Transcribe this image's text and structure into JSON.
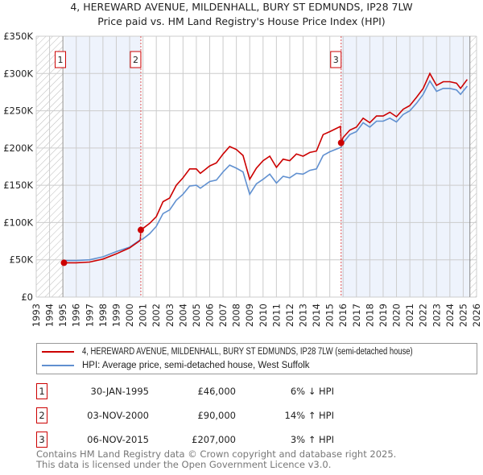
{
  "chart_data": {
    "type": "line",
    "title": "4, HEREWARD AVENUE, MILDENHALL, BURY ST EDMUNDS, IP28 7LW",
    "subtitle": "Price paid vs. HM Land Registry's House Price Index (HPI)",
    "xlim": [
      1993,
      2026
    ],
    "ylim": [
      0,
      350000
    ],
    "x_ticks": [
      "1993",
      "1994",
      "1995",
      "1996",
      "1997",
      "1998",
      "1999",
      "2000",
      "2001",
      "2002",
      "2003",
      "2004",
      "2005",
      "2006",
      "2007",
      "2008",
      "2009",
      "2010",
      "2011",
      "2012",
      "2013",
      "2014",
      "2015",
      "2016",
      "2017",
      "2018",
      "2019",
      "2020",
      "2021",
      "2022",
      "2023",
      "2024",
      "2025",
      "2026"
    ],
    "y_ticks": [
      {
        "v": 0,
        "label": "£0"
      },
      {
        "v": 50000,
        "label": "£50K"
      },
      {
        "v": 100000,
        "label": "£100K"
      },
      {
        "v": 150000,
        "label": "£150K"
      },
      {
        "v": 200000,
        "label": "£200K"
      },
      {
        "v": 250000,
        "label": "£250K"
      },
      {
        "v": 300000,
        "label": "£300K"
      },
      {
        "v": 350000,
        "label": "£350K"
      }
    ],
    "grid": true,
    "colors": {
      "property": "#cc0000",
      "hpi": "#6090d0",
      "shade": "#eef3fc"
    },
    "series": [
      {
        "name": "4, HEREWARD AVENUE, MILDENHALL, BURY ST EDMUNDS, IP28 7LW (semi-detached house)",
        "key": "property",
        "x": [
          1995.08,
          1996,
          1997,
          1998,
          1999,
          2000,
          2000.8,
          2000.84,
          2001.5,
          2002,
          2002.5,
          2003,
          2003.5,
          2004,
          2004.5,
          2005,
          2005.3,
          2006,
          2006.5,
          2007,
          2007.5,
          2008,
          2008.5,
          2009,
          2009.5,
          2010,
          2010.5,
          2011,
          2011.5,
          2012,
          2012.5,
          2013,
          2013.5,
          2014,
          2014.5,
          2015,
          2015.8,
          2015.85,
          2016,
          2016.5,
          2017,
          2017.5,
          2018,
          2018.5,
          2019,
          2019.5,
          2020,
          2020.5,
          2021,
          2021.5,
          2022,
          2022.5,
          2023,
          2023.5,
          2024,
          2024.5,
          2024.8,
          2025.3
        ],
        "y": [
          46,
          46,
          47,
          51,
          58,
          66,
          76,
          90,
          99,
          108,
          128,
          133,
          150,
          160,
          172,
          172,
          166,
          176,
          180,
          192,
          202,
          198,
          190,
          158,
          173,
          183,
          189,
          174,
          185,
          183,
          192,
          189,
          194,
          196,
          218,
          222,
          229,
          207,
          214,
          224,
          228,
          240,
          234,
          243,
          243,
          248,
          242,
          252,
          257,
          268,
          280,
          300,
          284,
          289,
          289,
          287,
          280,
          292
        ]
      },
      {
        "name": "HPI: Average price, semi-detached house, West Suffolk",
        "key": "hpi",
        "x": [
          1995,
          1996,
          1997,
          1998,
          1999,
          2000,
          2000.8,
          2001,
          2001.5,
          2002,
          2002.5,
          2003,
          2003.5,
          2004,
          2004.5,
          2005,
          2005.3,
          2006,
          2006.5,
          2007,
          2007.5,
          2008,
          2008.5,
          2009,
          2009.5,
          2010,
          2010.5,
          2011,
          2011.5,
          2012,
          2012.5,
          2013,
          2013.5,
          2014,
          2014.5,
          2015,
          2015.85,
          2016,
          2016.5,
          2017,
          2017.5,
          2018,
          2018.5,
          2019,
          2019.5,
          2020,
          2020.5,
          2021,
          2021.5,
          2022,
          2022.5,
          2023,
          2023.5,
          2024,
          2024.5,
          2024.8,
          2025.3
        ],
        "y": [
          49,
          49,
          50,
          54,
          61,
          67,
          77,
          78,
          85,
          95,
          112,
          117,
          130,
          138,
          149,
          150,
          146,
          155,
          157,
          168,
          177,
          173,
          168,
          138,
          152,
          158,
          165,
          153,
          162,
          160,
          166,
          165,
          170,
          172,
          190,
          195,
          201,
          207,
          218,
          222,
          234,
          228,
          236,
          236,
          240,
          235,
          245,
          250,
          260,
          272,
          290,
          276,
          280,
          280,
          278,
          272,
          283
        ]
      }
    ],
    "y_unit_multiplier": 1000,
    "sales": [
      {
        "n": "1",
        "x": 1995.08,
        "y": 46000
      },
      {
        "n": "2",
        "x": 2000.84,
        "y": 90000
      },
      {
        "n": "3",
        "x": 2015.85,
        "y": 207000
      }
    ],
    "shaded_ranges": [
      [
        1995.08,
        2000.84
      ],
      [
        2015.85,
        2025.5
      ]
    ],
    "hatched_ranges": [
      [
        1993,
        1995
      ],
      [
        2025.5,
        2026
      ]
    ]
  },
  "legend": {
    "property": "4, HEREWARD AVENUE, MILDENHALL, BURY ST EDMUNDS, IP28 7LW (semi-detached house)",
    "hpi": "HPI: Average price, semi-detached house, West Suffolk"
  },
  "transactions": [
    {
      "n": "1",
      "date": "30-JAN-1995",
      "price": "£46,000",
      "hpi": "6% ↓ HPI"
    },
    {
      "n": "2",
      "date": "03-NOV-2000",
      "price": "£90,000",
      "hpi": "14% ↑ HPI"
    },
    {
      "n": "3",
      "date": "06-NOV-2015",
      "price": "£207,000",
      "hpi": "3% ↑ HPI"
    }
  ],
  "footer": {
    "line1": "Contains HM Land Registry data © Crown copyright and database right 2025.",
    "line2": "This data is licensed under the Open Government Licence v3.0."
  }
}
